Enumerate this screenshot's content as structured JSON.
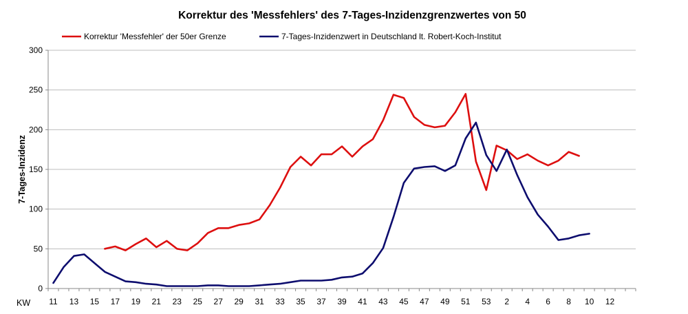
{
  "chart_data": {
    "type": "line",
    "title": "Korrektur des 'Messfehlers' des 7-Tages-Inzidenzgrenzwertes von 50",
    "xlabel": "KW",
    "ylabel": "7-Tages-Inzidenz",
    "ylim": [
      0,
      300
    ],
    "yticks": [
      0,
      50,
      100,
      150,
      200,
      250,
      300
    ],
    "grid": true,
    "legend_position": "top",
    "x_tick_labels": [
      "11",
      "13",
      "15",
      "17",
      "19",
      "21",
      "23",
      "25",
      "27",
      "29",
      "31",
      "33",
      "35",
      "37",
      "39",
      "41",
      "43",
      "45",
      "47",
      "49",
      "51",
      "53",
      "2",
      "4",
      "6",
      "8",
      "10",
      "12"
    ],
    "series": [
      {
        "name": "Korrektur 'Messfehler' der 50er Grenze",
        "color": "#dd0f0f",
        "start_index": 5,
        "values": [
          50,
          53,
          48,
          56,
          63,
          52,
          60,
          50,
          48,
          57,
          70,
          76,
          76,
          80,
          82,
          87,
          105,
          127,
          153,
          166,
          155,
          169,
          169,
          179,
          166,
          179,
          188,
          212,
          244,
          240,
          216,
          206,
          203,
          205,
          222,
          245,
          160,
          124,
          180,
          174,
          163,
          169,
          161,
          155,
          161,
          172,
          167
        ]
      },
      {
        "name": "7-Tages-Inzidenzwert in Deutschland lt. Robert-Koch-Institut",
        "color": "#0d0d6e",
        "start_index": 0,
        "values": [
          7,
          27,
          41,
          43,
          32,
          21,
          15,
          9,
          8,
          6,
          5,
          3,
          3,
          3,
          3,
          4,
          4,
          3,
          3,
          3,
          4,
          5,
          6,
          8,
          10,
          10,
          10,
          11,
          14,
          15,
          19,
          32,
          51,
          90,
          133,
          151,
          153,
          154,
          148,
          155,
          189,
          209,
          168,
          148,
          175,
          143,
          115,
          93,
          78,
          61,
          63,
          67,
          69
        ]
      }
    ]
  }
}
